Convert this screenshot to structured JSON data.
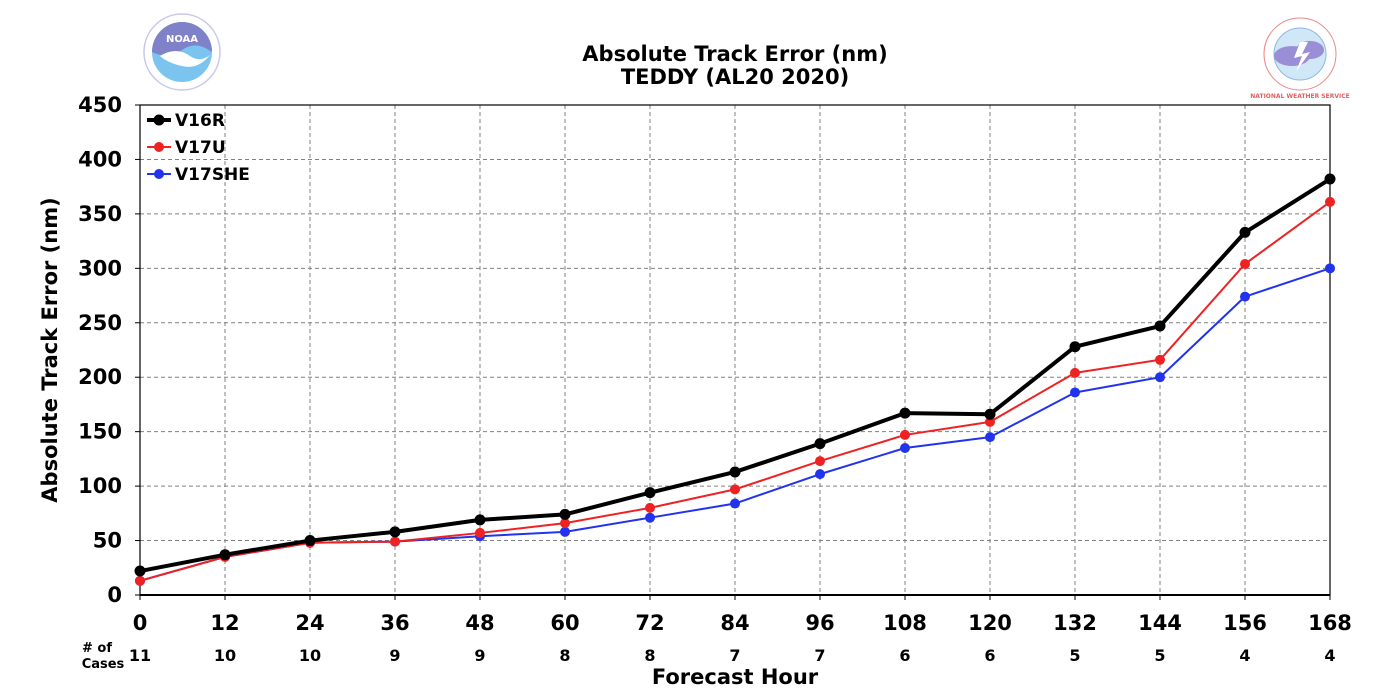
{
  "chart_data": {
    "type": "line",
    "title": "Absolute Track Error (nm)",
    "subtitle": "TEDDY (AL20 2020)",
    "xlabel": "Forecast Hour",
    "ylabel": "Absolute Track Error (nm)",
    "x": [
      0,
      12,
      24,
      36,
      48,
      60,
      72,
      84,
      96,
      108,
      120,
      132,
      144,
      156,
      168
    ],
    "xlim": [
      0,
      168
    ],
    "ylim": [
      0,
      450
    ],
    "yticks": [
      0,
      50,
      100,
      150,
      200,
      250,
      300,
      350,
      400,
      450
    ],
    "grid": true,
    "legend_position": "top-left",
    "cases_label": "# of\nCases",
    "cases": [
      11,
      10,
      10,
      9,
      9,
      8,
      8,
      7,
      7,
      6,
      6,
      5,
      5,
      4,
      4
    ],
    "series": [
      {
        "name": "V16R",
        "color": "#000000",
        "values": [
          22,
          37,
          50,
          58,
          69,
          74,
          94,
          113,
          139,
          167,
          166,
          228,
          247,
          333,
          382
        ]
      },
      {
        "name": "V17U",
        "color": "#ee2222",
        "values": [
          13,
          35,
          48,
          49,
          57,
          66,
          80,
          97,
          123,
          147,
          159,
          204,
          216,
          304,
          361
        ]
      },
      {
        "name": "V17SHE",
        "color": "#2233ee",
        "values": [
          13,
          35,
          48,
          49,
          54,
          58,
          71,
          84,
          111,
          135,
          145,
          186,
          200,
          274,
          300
        ]
      }
    ]
  },
  "logos": {
    "left": {
      "name": "NOAA",
      "text": "NOAA"
    },
    "right": {
      "name": "National Weather Service",
      "text": "NATIONAL WEATHER SERVICE"
    }
  }
}
